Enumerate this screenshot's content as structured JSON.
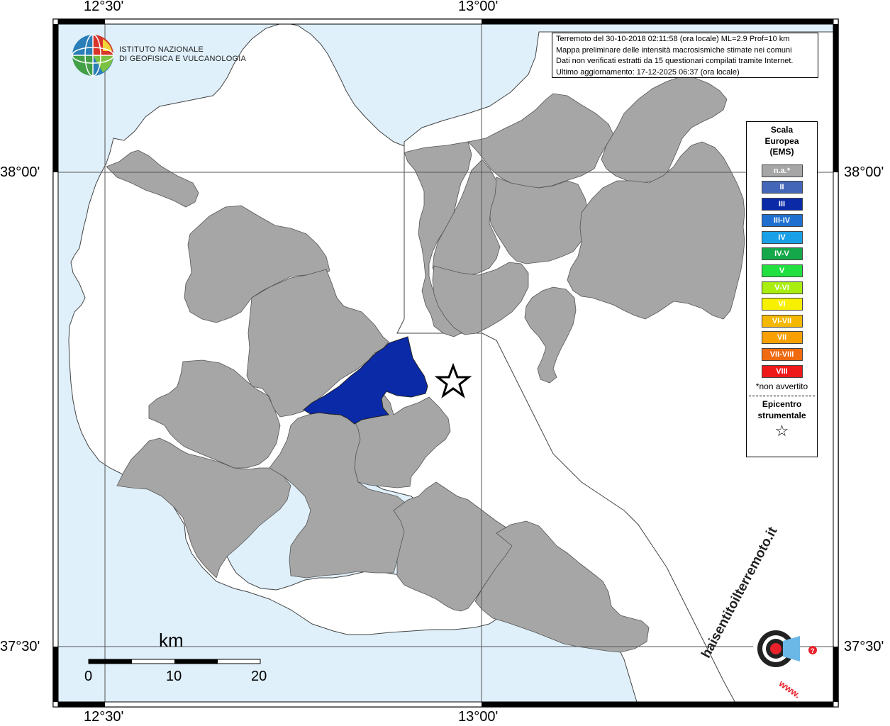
{
  "map": {
    "coords": {
      "top_left": "12°30'",
      "top_right": "13°00'",
      "bottom_left": "12°30'",
      "bottom_right": "13°00'",
      "left_upper": "38°00'",
      "left_lower": "37°30'",
      "right_upper": "38°00'",
      "right_lower": "37°30'"
    },
    "colors": {
      "sea": "#dff0fb",
      "land": "#ffffff",
      "na": "#a6a6a6",
      "felt": "#0a2aa8",
      "border": "#555555"
    },
    "info": {
      "line1": "Terremoto del 30-10-2018 02:11:58 (ora locale) ML=2.9 Prof=10 km",
      "line2": "Mappa preliminare delle intensità macrosismiche stimate nei comuni",
      "line3": "Dati non verificati estratti da 15 questionari compilati tramite Internet.",
      "line4": "Ultimo aggiornamento: 17-12-2025 06:37 (ora locale)"
    },
    "ingv_logo": {
      "line1": "ISTITUTO NAZIONALE",
      "line2": "DI GEOFISICA E VULCANOLOGIA"
    },
    "hst_logo": {
      "brand": "haisentitoilterremoto.it",
      "prefix": "www."
    },
    "legend": {
      "title_line1": "Scala",
      "title_line2": "Europea",
      "title_line3": "(EMS)",
      "items": [
        {
          "label": "n.a.*",
          "color": "#a6a6a6"
        },
        {
          "label": "II",
          "color": "#4466b8"
        },
        {
          "label": "III",
          "color": "#0a2aa8"
        },
        {
          "label": "III-IV",
          "color": "#1f6fd0"
        },
        {
          "label": "IV",
          "color": "#1aa0e6"
        },
        {
          "label": "IV-V",
          "color": "#15a84a"
        },
        {
          "label": "V",
          "color": "#22e040"
        },
        {
          "label": "V-VI",
          "color": "#aaee10"
        },
        {
          "label": "VI",
          "color": "#f7f000"
        },
        {
          "label": "VI-VII",
          "color": "#f4b800"
        },
        {
          "label": "VII",
          "color": "#f7a000"
        },
        {
          "label": "VII-VIII",
          "color": "#f06a10"
        },
        {
          "label": "VIII",
          "color": "#ee1a1a"
        }
      ],
      "note": "*non avvertito",
      "epicenter_line1": "Epicentro",
      "epicenter_line2": "strumentale",
      "star": "☆"
    },
    "scale_bar": {
      "title": "km",
      "ticks": [
        "0",
        "10",
        "20"
      ]
    }
  }
}
